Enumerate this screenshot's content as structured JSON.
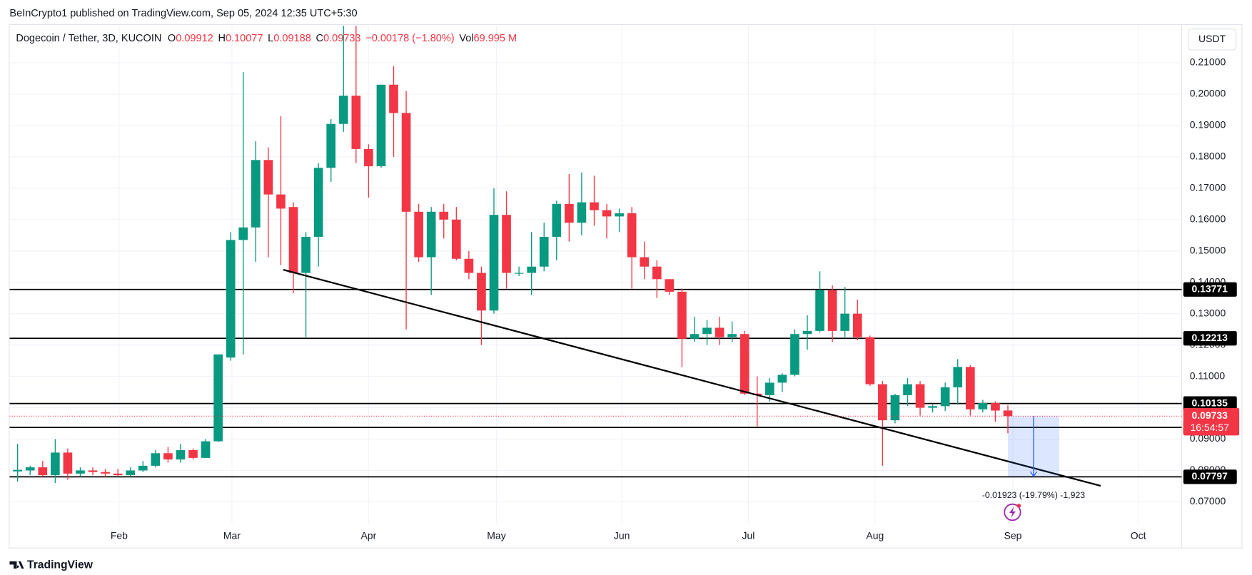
{
  "header": {
    "title": "BeInCrypto1 published on TradingView.com, Sep 05, 2024 12:35 UTC+5:30",
    "brand": "TradingView"
  },
  "chart_data": {
    "type": "candlestick",
    "symbol": "Dogecoin / Tether, 3D, KUCOIN",
    "legend_ohlc": [
      {
        "label": "O",
        "value": 0.09912
      },
      {
        "label": "H",
        "value": 0.10077
      },
      {
        "label": "L",
        "value": 0.09188
      },
      {
        "label": "C",
        "value": 0.09733
      }
    ],
    "change": "−0.00178 (−1.80%)",
    "volume_label": "Vol",
    "volume": "69.995 M",
    "currency": "USDT",
    "up_color": "#089981",
    "down_color": "#f23645",
    "open": [
      0.0797,
      0.08,
      0.081,
      0.0785,
      0.0857,
      0.079,
      0.08,
      0.0795,
      0.079,
      0.0785,
      0.08,
      0.0815,
      0.0855,
      0.0835,
      0.0865,
      0.084,
      0.0893,
      0.116,
      0.1535,
      0.1575,
      0.179,
      0.168,
      0.164,
      0.143,
      0.1545,
      0.1765,
      0.1905,
      0.1995,
      0.1825,
      0.177,
      0.203,
      0.194,
      0.1625,
      0.148,
      0.1625,
      0.16,
      0.1475,
      0.143,
      0.131,
      0.1615,
      0.143,
      0.143,
      0.145,
      0.1545,
      0.165,
      0.159,
      0.1655,
      0.163,
      0.161,
      0.162,
      0.148,
      0.145,
      0.141,
      0.137,
      0.122,
      0.1235,
      0.1255,
      0.1225,
      0.1235,
      0.1045,
      0.104,
      0.108,
      0.1105,
      0.1235,
      0.1245,
      0.1375,
      0.1245,
      0.13,
      0.1225,
      0.1075,
      0.096,
      0.104,
      0.1075,
      0.1,
      0.1005,
      0.1065,
      0.113,
      0.0995,
      0.1015,
      0.09912
    ],
    "high": [
      0.0885,
      0.0815,
      0.083,
      0.09,
      0.087,
      0.081,
      0.081,
      0.0805,
      0.0805,
      0.081,
      0.083,
      0.0865,
      0.0875,
      0.0885,
      0.087,
      0.09,
      0.117,
      0.156,
      0.207,
      0.185,
      0.183,
      0.193,
      0.1655,
      0.156,
      0.178,
      0.192,
      0.225,
      0.225,
      0.184,
      0.203,
      0.209,
      0.201,
      0.165,
      0.164,
      0.165,
      0.164,
      0.15,
      0.145,
      0.17,
      0.169,
      0.145,
      0.156,
      0.159,
      0.166,
      0.1745,
      0.175,
      0.174,
      0.165,
      0.1635,
      0.164,
      0.153,
      0.147,
      0.141,
      0.138,
      0.129,
      0.128,
      0.129,
      0.1275,
      0.1245,
      0.11,
      0.1095,
      0.111,
      0.125,
      0.1295,
      0.1435,
      0.139,
      0.1385,
      0.1345,
      0.123,
      0.1085,
      0.1045,
      0.1095,
      0.1085,
      0.101,
      0.108,
      0.1155,
      0.1135,
      0.1025,
      0.102,
      0.10077
    ],
    "low": [
      0.0765,
      0.0785,
      0.078,
      0.076,
      0.077,
      0.078,
      0.0785,
      0.078,
      0.078,
      0.078,
      0.0795,
      0.081,
      0.0825,
      0.0825,
      0.0835,
      0.084,
      0.089,
      0.115,
      0.117,
      0.1465,
      0.148,
      0.1455,
      0.1365,
      0.1225,
      0.145,
      0.172,
      0.188,
      0.178,
      0.167,
      0.1765,
      0.18,
      0.125,
      0.1465,
      0.136,
      0.154,
      0.147,
      0.141,
      0.12,
      0.13,
      0.138,
      0.142,
      0.136,
      0.1435,
      0.147,
      0.153,
      0.155,
      0.158,
      0.154,
      0.156,
      0.138,
      0.141,
      0.135,
      0.136,
      0.113,
      0.121,
      0.12,
      0.12,
      0.121,
      0.104,
      0.094,
      0.102,
      0.105,
      0.11,
      0.1185,
      0.124,
      0.121,
      0.1225,
      0.1215,
      0.107,
      0.0815,
      0.095,
      0.1005,
      0.0975,
      0.0985,
      0.099,
      0.101,
      0.0975,
      0.0985,
      0.0955,
      0.09188
    ],
    "close": [
      0.0802,
      0.081,
      0.0785,
      0.0857,
      0.079,
      0.08,
      0.0795,
      0.079,
      0.0785,
      0.08,
      0.0815,
      0.0855,
      0.0835,
      0.0865,
      0.084,
      0.0893,
      0.117,
      0.1535,
      0.1575,
      0.179,
      0.168,
      0.1635,
      0.143,
      0.1545,
      0.1765,
      0.1905,
      0.1995,
      0.1825,
      0.177,
      0.203,
      0.194,
      0.1625,
      0.148,
      0.1625,
      0.16,
      0.1475,
      0.143,
      0.131,
      0.1615,
      0.143,
      0.143,
      0.145,
      0.1545,
      0.165,
      0.159,
      0.1655,
      0.163,
      0.161,
      0.162,
      0.148,
      0.145,
      0.141,
      0.137,
      0.122,
      0.1235,
      0.1255,
      0.1225,
      0.1235,
      0.1045,
      0.104,
      0.108,
      0.1105,
      0.1235,
      0.1245,
      0.1375,
      0.1245,
      0.13,
      0.1225,
      0.1075,
      0.096,
      0.104,
      0.1075,
      0.1,
      0.1005,
      0.1065,
      0.113,
      0.0995,
      0.1015,
      0.0991,
      0.09733
    ],
    "xlim": [
      -0.64,
      92.87
    ],
    "xticks": [
      {
        "value": 8.1,
        "label": "Feb"
      },
      {
        "value": 17.1,
        "label": "Mar"
      },
      {
        "value": 28.0,
        "label": "Apr"
      },
      {
        "value": 38.2,
        "label": "May"
      },
      {
        "value": 48.2,
        "label": "Jun"
      },
      {
        "value": 58.3,
        "label": "Jul"
      },
      {
        "value": 68.4,
        "label": "Aug"
      },
      {
        "value": 79.4,
        "label": "Sep"
      },
      {
        "value": 89.4,
        "label": "Oct"
      }
    ],
    "ylim": [
      0.0631,
      0.2218
    ],
    "yticks": [
      {
        "value": 0.07,
        "label": "0.07000"
      },
      {
        "value": 0.08,
        "label": "0.08000"
      },
      {
        "value": 0.09,
        "label": "0.09000"
      },
      {
        "value": 0.1,
        "label": "0.10000"
      },
      {
        "value": 0.11,
        "label": "0.11000"
      },
      {
        "value": 0.12,
        "label": "0.12000"
      },
      {
        "value": 0.13,
        "label": "0.13000"
      },
      {
        "value": 0.14,
        "label": "0.14000"
      },
      {
        "value": 0.15,
        "label": "0.15000"
      },
      {
        "value": 0.16,
        "label": "0.16000"
      },
      {
        "value": 0.17,
        "label": "0.17000"
      },
      {
        "value": 0.18,
        "label": "0.18000"
      },
      {
        "value": 0.19,
        "label": "0.19000"
      },
      {
        "value": 0.2,
        "label": "0.20000"
      },
      {
        "value": 0.21,
        "label": "0.21000"
      }
    ],
    "grid": true,
    "levels": [
      0.13771,
      0.12213,
      0.10135,
      0.09373,
      0.07797
    ],
    "last_price": 0.09733,
    "countdown": "16:54:57",
    "trendline": {
      "x": [
        21.2,
        86.4
      ],
      "y": [
        0.144,
        0.0751
      ]
    },
    "measure": {
      "x": [
        79.0,
        83.1
      ],
      "from": 0.09733,
      "to": 0.0781,
      "label": "-0.01923 (-19.79%) -1,923"
    }
  }
}
